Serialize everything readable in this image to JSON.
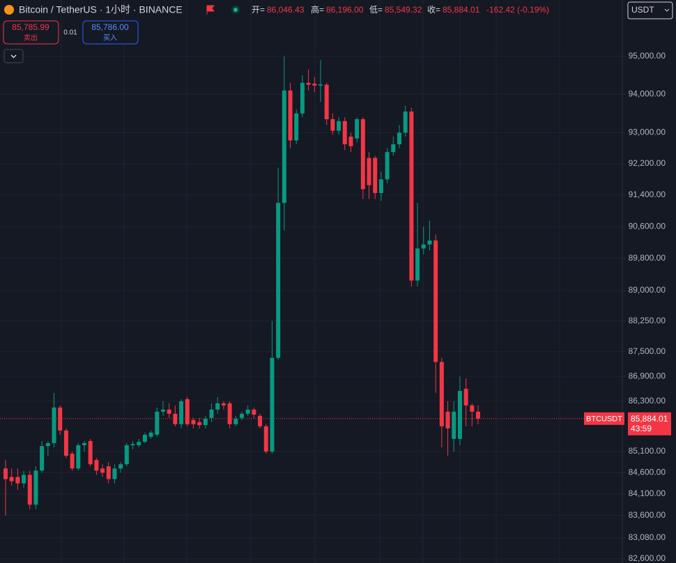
{
  "header": {
    "symbol_title": "Bitcoin / TetherUS · 1小时 · BINANCE",
    "ohlc": [
      {
        "label": "开=",
        "value": "86,046.43"
      },
      {
        "label": "高=",
        "value": "86,196.00"
      },
      {
        "label": "低=",
        "value": "85,549.32"
      },
      {
        "label": "收=",
        "value": "85,884.01"
      }
    ],
    "change": "-162.42 (-0.19%)",
    "currency": "USDT"
  },
  "trade": {
    "sell_price": "85,785.99",
    "sell_label": "卖出",
    "quantity": "0.01",
    "buy_price": "85,786.00",
    "buy_label": "买入"
  },
  "chart_data": {
    "type": "candlestick",
    "log_scale": true,
    "grid": true,
    "up_color": "#089981",
    "down_color": "#f23645",
    "ylim": [
      82500,
      96500
    ],
    "yticks": [
      {
        "value": 95000,
        "label": "95,000.00"
      },
      {
        "value": 94000,
        "label": "94,000.00"
      },
      {
        "value": 93000,
        "label": "93,000.00"
      },
      {
        "value": 92200,
        "label": "92,200.00"
      },
      {
        "value": 91400,
        "label": "91,400.00"
      },
      {
        "value": 90600,
        "label": "90,600.00"
      },
      {
        "value": 89800,
        "label": "89,800.00"
      },
      {
        "value": 89000,
        "label": "89,000.00"
      },
      {
        "value": 88250,
        "label": "88,250.00"
      },
      {
        "value": 87500,
        "label": "87,500.00"
      },
      {
        "value": 86900,
        "label": "86,900.00"
      },
      {
        "value": 86300,
        "label": "86,300.00"
      },
      {
        "value": 85100,
        "label": "85,100.00"
      },
      {
        "value": 84600,
        "label": "84,600.00"
      },
      {
        "value": 84100,
        "label": "84,100.00"
      },
      {
        "value": 83600,
        "label": "83,600.00"
      },
      {
        "value": 83080,
        "label": "83,080.00"
      },
      {
        "value": 82600,
        "label": "82,600.00"
      }
    ],
    "candles": {
      "open": [
        84700,
        84500,
        84500,
        84350,
        84550,
        83850,
        84650,
        85230,
        85300,
        86150,
        85600,
        85050,
        84700,
        85250,
        85350,
        84900,
        84700,
        84750,
        84450,
        84700,
        84800,
        85250,
        85250,
        85330,
        85450,
        85500,
        86050,
        86100,
        86000,
        85750,
        86350,
        85850,
        85800,
        85730,
        85900,
        86100,
        86250,
        86250,
        85750,
        85900,
        86000,
        86100,
        85950,
        85700,
        85100,
        87350,
        91200,
        94100,
        92800,
        93500,
        94300,
        94280,
        94230,
        94250,
        93350,
        93050,
        93300,
        92900,
        92850,
        93350,
        92350,
        92350,
        91450,
        91800,
        92500,
        92700,
        93000,
        93550,
        89250,
        90050,
        90150,
        90250,
        87250,
        86050,
        85400,
        85400,
        86600,
        86200,
        86050
      ],
      "high": [
        84900,
        84700,
        84700,
        84650,
        84650,
        84750,
        85350,
        85350,
        86500,
        86200,
        85650,
        85100,
        85300,
        85350,
        85400,
        84950,
        84800,
        84850,
        84800,
        84850,
        85300,
        85350,
        85400,
        85550,
        85600,
        86150,
        86300,
        86250,
        86200,
        86350,
        86400,
        85900,
        85900,
        85950,
        86250,
        86400,
        86300,
        86300,
        85950,
        86050,
        86200,
        86150,
        86000,
        85750,
        88250,
        92100,
        95000,
        94300,
        93600,
        94500,
        94650,
        94450,
        94900,
        94300,
        93500,
        93400,
        93400,
        93000,
        93400,
        93400,
        92500,
        92400,
        92000,
        92600,
        92900,
        93200,
        93700,
        93650,
        91200,
        90600,
        90750,
        90400,
        87350,
        86300,
        86300,
        86900,
        86850,
        86250,
        86200
      ],
      "low": [
        83600,
        84300,
        84200,
        84250,
        83750,
        83750,
        84600,
        85000,
        85200,
        85500,
        84950,
        84650,
        84650,
        85100,
        84750,
        84550,
        84500,
        84350,
        84350,
        84600,
        84750,
        85150,
        85200,
        85300,
        85400,
        85450,
        85950,
        85900,
        85700,
        85650,
        85700,
        85650,
        85650,
        85650,
        85800,
        86000,
        86100,
        85650,
        85700,
        85850,
        85950,
        85900,
        85650,
        85050,
        85050,
        87300,
        90500,
        92600,
        92700,
        93400,
        94100,
        94050,
        93800,
        93200,
        92950,
        92950,
        92550,
        92500,
        92750,
        91300,
        91300,
        91300,
        91250,
        91700,
        92400,
        92600,
        92900,
        89100,
        89100,
        89900,
        90000,
        86500,
        85200,
        85000,
        85100,
        85250,
        85700,
        85700,
        85750
      ],
      "close": [
        84450,
        84400,
        84350,
        84550,
        83850,
        84650,
        85230,
        85300,
        86150,
        85600,
        85000,
        84700,
        85250,
        85300,
        84800,
        84650,
        84600,
        84450,
        84700,
        84800,
        85250,
        85280,
        85330,
        85500,
        85550,
        86050,
        86100,
        86000,
        85750,
        86300,
        85750,
        85750,
        85730,
        85880,
        86100,
        86250,
        86200,
        85750,
        85880,
        86000,
        86100,
        85980,
        85700,
        85100,
        87350,
        91200,
        94100,
        92800,
        93500,
        94300,
        94250,
        94230,
        94260,
        93350,
        93050,
        93300,
        92700,
        92650,
        93350,
        91550,
        91650,
        91450,
        91800,
        92500,
        92700,
        93000,
        93550,
        89250,
        90050,
        90150,
        90250,
        87250,
        85700,
        85650,
        86050,
        86550,
        86200,
        86050,
        85884.01
      ]
    },
    "last_price": {
      "value": 85884.01,
      "label": "85,884.01"
    },
    "symbol": "BTCUSDT",
    "countdown": "43:59"
  }
}
